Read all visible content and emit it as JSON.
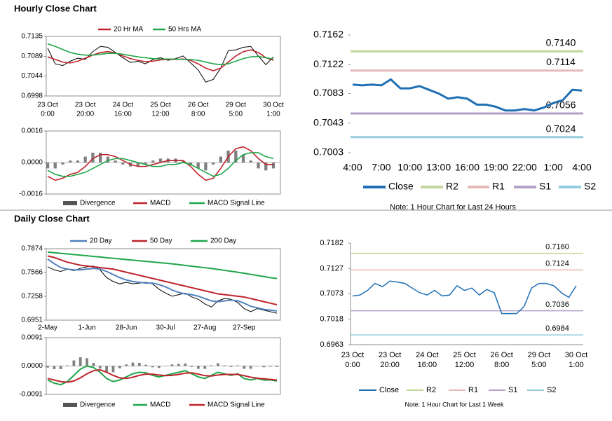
{
  "sections": [
    "Hourly Close Chart",
    "Daily Close Chart"
  ],
  "chart_data": [
    {
      "type": "line",
      "categories": [
        [
          "23 Oct",
          "0:00"
        ],
        null,
        null,
        null,
        null,
        [
          "23 Oct",
          "20:00"
        ],
        null,
        null,
        null,
        null,
        [
          "24 Oct",
          "16:00"
        ],
        null,
        null,
        null,
        null,
        [
          "25 Oct",
          "12:00"
        ],
        null,
        null,
        null,
        null,
        [
          "26 Oct",
          "8:00"
        ],
        null,
        null,
        null,
        null,
        [
          "29 Oct",
          "5:00"
        ],
        null,
        null,
        null,
        null,
        [
          "30 Oct",
          "1:00"
        ]
      ],
      "ylim": [
        0.6998,
        0.7135
      ],
      "yticks": [
        0.6998,
        0.7044,
        0.7089,
        0.7135
      ],
      "series": [
        {
          "color": "#000000",
          "values": [
            0.7108,
            0.7072,
            0.7068,
            0.7078,
            0.7085,
            0.7082,
            0.71,
            0.7112,
            0.711,
            0.7098,
            0.7086,
            0.7075,
            0.7078,
            0.7072,
            0.7082,
            0.7086,
            0.708,
            0.7084,
            0.709,
            0.7074,
            0.7058,
            0.703,
            0.7036,
            0.7062,
            0.7102,
            0.7104,
            0.711,
            0.7112,
            0.709,
            0.707,
            0.7088
          ]
        },
        {
          "name": "20 Hr MA",
          "color": "#c0232b",
          "values": [
            0.7088,
            0.7082,
            0.7076,
            0.7074,
            0.7078,
            0.7085,
            0.7092,
            0.7098,
            0.71,
            0.7097,
            0.709,
            0.7084,
            0.708,
            0.7077,
            0.7078,
            0.7081,
            0.7082,
            0.7082,
            0.7083,
            0.708,
            0.7072,
            0.7062,
            0.7056,
            0.7062,
            0.7076,
            0.709,
            0.71,
            0.7104,
            0.7098,
            0.7086,
            0.708
          ]
        },
        {
          "name": "50 Hrs MA",
          "color": "#1fa64a",
          "values": [
            0.7118,
            0.7112,
            0.7105,
            0.7098,
            0.7094,
            0.7092,
            0.7092,
            0.7094,
            0.7096,
            0.7096,
            0.7094,
            0.7091,
            0.7088,
            0.7086,
            0.7084,
            0.7083,
            0.7083,
            0.7083,
            0.7082,
            0.7082,
            0.708,
            0.7076,
            0.7072,
            0.707,
            0.7072,
            0.7078,
            0.7084,
            0.7088,
            0.7089,
            0.7086,
            0.7083
          ]
        }
      ]
    },
    {
      "type": "line",
      "ylim": [
        -0.0016,
        0.0016
      ],
      "yticks": [
        -0.0016,
        {
          "value": 0,
          "label": "0.0000"
        },
        0.0016
      ],
      "series": [
        {
          "name": "Divergence",
          "type": "bar",
          "color": "#7f7f7f",
          "values": [
            -0.0003,
            -0.0003,
            -0.0001,
            0.0001,
            0.0001,
            0.0003,
            0.0005,
            0.0005,
            0.0003,
            0.0001,
            -0.0001,
            -0.0002,
            -0.0002,
            -0.0001,
            0.0001,
            0.0002,
            0.0002,
            0.0002,
            0.0001,
            -0.0001,
            -0.0003,
            -0.0004,
            -0.0001,
            0.0003,
            0.0006,
            0.0006,
            0.0004,
            0.0001,
            -0.0003,
            -0.0004,
            -0.0003
          ]
        },
        {
          "name": "MACD",
          "color": "#c0232b",
          "values": [
            -0.0007,
            -0.0009,
            -0.0008,
            -0.0006,
            -0.0005,
            -0.0002,
            0.0002,
            0.0004,
            0.0004,
            0.0003,
            0.0001,
            -0.0001,
            -0.0002,
            -0.0002,
            -0.0001,
            0,
            0.0001,
            0.0001,
            0.0001,
            -0.0002,
            -0.0006,
            -0.0009,
            -0.0008,
            -0.0003,
            0.0003,
            0.0007,
            0.0008,
            0.0006,
            0.0002,
            -0.0001,
            -0.0001
          ]
        },
        {
          "name": "MACD Signal Line",
          "color": "#1fa64a",
          "values": [
            -0.0004,
            -0.0006,
            -0.0007,
            -0.0007,
            -0.0006,
            -0.0005,
            -0.0003,
            -0.0001,
            0.0001,
            0.0002,
            0.0002,
            0.0001,
            0,
            -0.0001,
            -0.0002,
            -0.0002,
            -0.0001,
            -0.0001,
            0,
            -0.0001,
            -0.0003,
            -0.0005,
            -0.0007,
            -0.0006,
            -0.0003,
            0.0001,
            0.0004,
            0.0005,
            0.0005,
            0.0003,
            0.0002
          ]
        }
      ]
    },
    {
      "type": "line",
      "categories": [
        "2-May",
        null,
        null,
        null,
        null,
        null,
        "1-Jun",
        null,
        null,
        null,
        null,
        null,
        "28-Jun",
        null,
        null,
        null,
        null,
        null,
        "30-Jul",
        null,
        null,
        null,
        null,
        null,
        "27-Aug",
        null,
        null,
        null,
        null,
        null,
        "27-Sep",
        null,
        null,
        null,
        null,
        null
      ],
      "ylim": [
        0.6951,
        0.7874
      ],
      "yticks": [
        0.6951,
        0.7258,
        0.7566,
        0.7874
      ],
      "series": [
        {
          "color": "#000000",
          "values": [
            0.764,
            0.76,
            0.758,
            0.761,
            0.759,
            0.762,
            0.764,
            0.765,
            0.76,
            0.75,
            0.745,
            0.742,
            0.744,
            0.742,
            0.743,
            0.744,
            0.742,
            0.735,
            0.73,
            0.726,
            0.728,
            0.73,
            0.725,
            0.722,
            0.716,
            0.712,
            0.72,
            0.723,
            0.722,
            0.718,
            0.71,
            0.706,
            0.71,
            0.708,
            0.706,
            0.704
          ]
        },
        {
          "name": "20 Day",
          "color": "#4f81bd",
          "values": [
            0.774,
            0.768,
            0.763,
            0.761,
            0.76,
            0.76,
            0.761,
            0.762,
            0.761,
            0.758,
            0.754,
            0.75,
            0.747,
            0.745,
            0.744,
            0.743,
            0.743,
            0.741,
            0.738,
            0.734,
            0.731,
            0.729,
            0.728,
            0.726,
            0.723,
            0.72,
            0.719,
            0.72,
            0.721,
            0.72,
            0.717,
            0.713,
            0.711,
            0.709,
            0.708,
            0.707
          ]
        },
        {
          "name": "50 Day",
          "color": "#c0232b",
          "values": [
            0.778,
            0.776,
            0.773,
            0.77,
            0.768,
            0.766,
            0.765,
            0.764,
            0.763,
            0.762,
            0.761,
            0.759,
            0.757,
            0.755,
            0.753,
            0.751,
            0.749,
            0.747,
            0.745,
            0.743,
            0.741,
            0.739,
            0.737,
            0.735,
            0.733,
            0.731,
            0.729,
            0.728,
            0.727,
            0.726,
            0.725,
            0.723,
            0.721,
            0.719,
            0.717,
            0.715
          ]
        },
        {
          "name": "200 Day",
          "color": "#1fa64a",
          "values": [
            0.783,
            0.7822,
            0.7814,
            0.7806,
            0.7798,
            0.779,
            0.7782,
            0.7774,
            0.7766,
            0.7758,
            0.775,
            0.7742,
            0.7734,
            0.7726,
            0.7718,
            0.771,
            0.7702,
            0.7694,
            0.7686,
            0.7678,
            0.7668,
            0.7658,
            0.7648,
            0.7638,
            0.7628,
            0.7618,
            0.7606,
            0.7594,
            0.7582,
            0.757,
            0.7556,
            0.7542,
            0.7528,
            0.7514,
            0.75,
            0.7488
          ]
        }
      ]
    },
    {
      "type": "line",
      "ylim": [
        -0.0091,
        0.0091
      ],
      "yticks": [
        -0.0091,
        {
          "value": 0,
          "label": "0.0000"
        },
        0.0091
      ],
      "series": [
        {
          "name": "Divergence",
          "type": "bar",
          "color": "#7f7f7f",
          "values": [
            -0.0005,
            -0.001,
            -0.001,
            0.0002,
            0.0018,
            0.0028,
            0.0025,
            0.001,
            -0.0008,
            -0.002,
            -0.002,
            -0.0007,
            0.0005,
            0.0011,
            0.001,
            0.0004,
            -0.0004,
            -0.0006,
            0.0001,
            0.0005,
            0.0007,
            0.0008,
            -0.0003,
            -0.0009,
            -0.0009,
            0.0002,
            0.0009,
            0.0002,
            -0.0003,
            0.0002,
            -0.0009,
            -0.0009,
            -0.0001,
            -0.0004,
            -0.0002,
            -0.0003
          ]
        },
        {
          "name": "MACD",
          "color": "#1fa64a",
          "values": [
            -0.0045,
            -0.0055,
            -0.006,
            -0.005,
            -0.003,
            -0.001,
            0,
            -0.0005,
            -0.002,
            -0.004,
            -0.005,
            -0.0045,
            -0.0035,
            -0.0025,
            -0.002,
            -0.0022,
            -0.003,
            -0.0035,
            -0.003,
            -0.0025,
            -0.002,
            -0.0015,
            -0.0025,
            -0.0035,
            -0.004,
            -0.003,
            -0.002,
            -0.0025,
            -0.003,
            -0.0025,
            -0.004,
            -0.0045,
            -0.004,
            -0.0045,
            -0.0045,
            -0.0048
          ]
        },
        {
          "name": "MACD Signal Line",
          "color": "#c0232b",
          "values": [
            -0.004,
            -0.0045,
            -0.005,
            -0.0052,
            -0.0048,
            -0.0038,
            -0.0025,
            -0.0015,
            -0.0012,
            -0.002,
            -0.003,
            -0.0038,
            -0.004,
            -0.0036,
            -0.003,
            -0.0026,
            -0.0026,
            -0.0029,
            -0.0031,
            -0.003,
            -0.0027,
            -0.0023,
            -0.0022,
            -0.0026,
            -0.0031,
            -0.0032,
            -0.0029,
            -0.0027,
            -0.0027,
            -0.0027,
            -0.0031,
            -0.0036,
            -0.0039,
            -0.0041,
            -0.0043,
            -0.0045
          ]
        }
      ]
    },
    {
      "type": "line",
      "categories": [
        "4:00",
        null,
        null,
        "7:00",
        null,
        null,
        "10:00",
        null,
        null,
        "13:00",
        null,
        null,
        "16:00",
        null,
        null,
        "19:00",
        null,
        null,
        "22:00",
        null,
        null,
        "1:00",
        null,
        null,
        "4:00"
      ],
      "ylim": [
        0.7003,
        0.7162
      ],
      "yticks": [
        0.7003,
        0.7043,
        0.7083,
        0.7122,
        0.7162
      ],
      "series": [
        {
          "name": "Close",
          "color": "#1f6fb5",
          "values": [
            0.7095,
            0.7094,
            0.7095,
            0.7094,
            0.7102,
            0.709,
            0.709,
            0.7093,
            0.7088,
            0.7083,
            0.7076,
            0.7078,
            0.7076,
            0.7068,
            0.7068,
            0.7065,
            0.706,
            0.706,
            0.7062,
            0.706,
            0.7064,
            0.707,
            0.7074,
            0.7088,
            0.7087
          ]
        }
      ],
      "levels": [
        {
          "name": "R2",
          "color": "#c3d69b",
          "value": 0.714,
          "label": "0.7140"
        },
        {
          "name": "R1",
          "color": "#e6b9b8",
          "value": 0.7114
        },
        {
          "name": "S1",
          "color": "#b3a2c7",
          "value": 0.7056
        },
        {
          "name": "S2",
          "color": "#93cddd",
          "value": 0.7024
        }
      ],
      "note": "Note: 1 Hour Chart for Last 24 Hours"
    },
    {
      "type": "line",
      "categories": [
        [
          "23 Oct",
          "0:00"
        ],
        null,
        null,
        null,
        null,
        [
          "23 Oct",
          "20:00"
        ],
        null,
        null,
        null,
        null,
        [
          "24 Oct",
          "16:00"
        ],
        null,
        null,
        null,
        null,
        [
          "25 Oct",
          "12:00"
        ],
        null,
        null,
        null,
        null,
        [
          "26 Oct",
          "8:00"
        ],
        null,
        null,
        null,
        null,
        [
          "29 Oct",
          "5:00"
        ],
        null,
        null,
        null,
        null,
        [
          "30 Oct",
          "1:00"
        ]
      ],
      "ylim": [
        0.6963,
        0.7182
      ],
      "yticks": [
        0.6963,
        0.7018,
        0.7073,
        0.7127,
        0.7182
      ],
      "series": [
        {
          "name": "Close",
          "color": "#1f6fb5",
          "values": [
            0.7068,
            0.707,
            0.708,
            0.7095,
            0.7088,
            0.71,
            0.7098,
            0.7095,
            0.7085,
            0.7075,
            0.707,
            0.708,
            0.7068,
            0.707,
            0.709,
            0.708,
            0.7085,
            0.707,
            0.7082,
            0.7075,
            0.703,
            0.703,
            0.703,
            0.7045,
            0.7085,
            0.7095,
            0.7095,
            0.709,
            0.7075,
            0.7065,
            0.709
          ]
        }
      ],
      "levels": [
        {
          "name": "R2",
          "color": "#c3d69b",
          "value": 0.716,
          "label": "0.7160"
        },
        {
          "name": "R1",
          "color": "#e6b9b8",
          "value": 0.7124
        },
        {
          "name": "S1",
          "color": "#b3a2c7",
          "value": 0.7036
        },
        {
          "name": "S2",
          "color": "#93cddd",
          "value": 0.6984
        }
      ],
      "note": "Note: 1 Hour Chart for Last 1 Week"
    }
  ]
}
